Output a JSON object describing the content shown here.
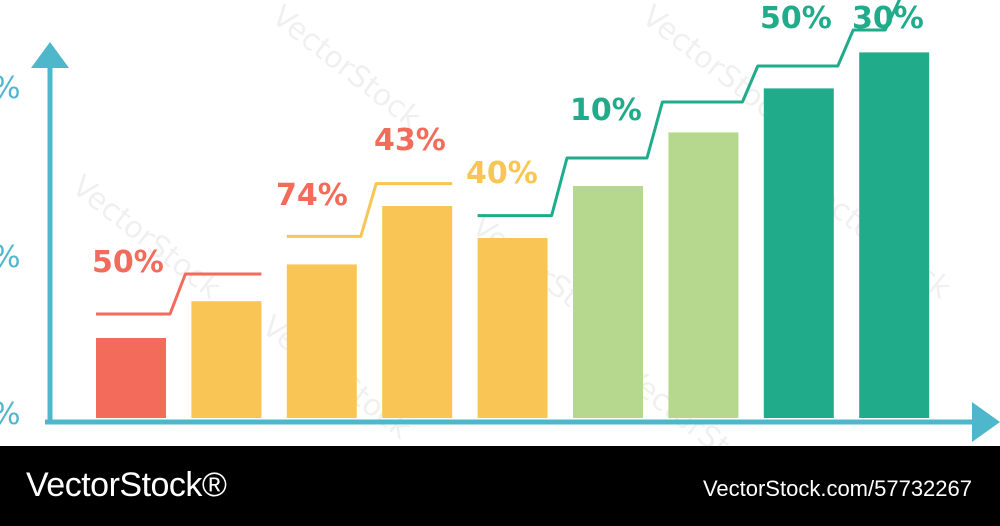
{
  "chart_data": {
    "type": "bar",
    "title": "",
    "xlabel": "",
    "ylabel": "",
    "y_tick_labels": [
      "%",
      "%",
      "%"
    ],
    "values": [
      1.0,
      1.46,
      1.92,
      2.65,
      2.25,
      2.9,
      3.57,
      4.12,
      4.57
    ],
    "bar_colors": [
      "#f26b5b",
      "#f9c655",
      "#f9c655",
      "#f9c655",
      "#f9c655",
      "#b5d88e",
      "#b5d88e",
      "#20ab8a",
      "#20ab8a"
    ],
    "step_line": {
      "segments": [
        {
          "from_bar": 0,
          "to_bar": 2,
          "color": "#f26b5b",
          "levels": [
            1.3,
            1.8
          ]
        },
        {
          "from_bar": 2,
          "to_bar": 4,
          "color": "#f9c655",
          "levels": [
            2.27,
            2.93
          ]
        },
        {
          "from_bar": 4,
          "to_bar": 8,
          "color": "#20ab8a",
          "levels": [
            2.53,
            3.25,
            3.95,
            4.4,
            4.85
          ]
        }
      ]
    },
    "annotations": [
      {
        "text": "50%",
        "color": "#f26b5b"
      },
      {
        "text": "74%",
        "color": "#f26b5b"
      },
      {
        "text": "43%",
        "color": "#f26b5b"
      },
      {
        "text": "40%",
        "color": "#f9c655"
      },
      {
        "text": "10%",
        "color": "#20ab8a"
      },
      {
        "text": "50%",
        "color": "#20ab8a"
      },
      {
        "text": "30%",
        "color": "#20ab8a"
      }
    ],
    "axis_color": "#4fb7cb",
    "grid": false,
    "legend": "none"
  },
  "watermark_text": "VectorStock",
  "footer": {
    "brand": "VectorStock®",
    "stock_id": "VectorStock.com/57732267"
  }
}
